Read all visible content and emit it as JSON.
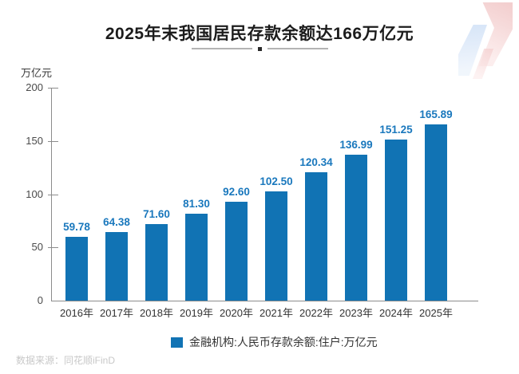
{
  "header": {
    "title": "2025年末我国居民存款余额达166万亿元"
  },
  "chart_data": {
    "type": "bar",
    "title": "2025年末我国居民存款余额达166万亿元",
    "unit_label": "万亿元",
    "categories": [
      "2016年",
      "2017年",
      "2018年",
      "2019年",
      "2020年",
      "2021年",
      "2022年",
      "2023年",
      "2024年",
      "2025年"
    ],
    "values": [
      59.78,
      64.38,
      71.6,
      81.3,
      92.6,
      102.5,
      120.34,
      136.99,
      151.25,
      165.89
    ],
    "value_labels": [
      "59.78",
      "64.38",
      "71.60",
      "81.30",
      "92.60",
      "102.50",
      "120.34",
      "136.99",
      "151.25",
      "165.89"
    ],
    "xlabel": "",
    "ylabel": "万亿元",
    "ylim": [
      0,
      200
    ],
    "yticks": [
      0,
      50,
      100,
      150,
      200
    ],
    "grid": false,
    "legend_entries": [
      "金融机构:人民币存款余额:住户:万亿元"
    ],
    "legend_position": "bottom"
  },
  "legend": {
    "label": "金融机构:人民币存款余额:住户:万亿元"
  },
  "footer": {
    "source": "数据来源：同花顺iFinD"
  },
  "colors": {
    "bar": "#1173b4",
    "value_label": "#1a78bd",
    "axis": "#8c8c8c",
    "title": "#1c1c1c"
  }
}
